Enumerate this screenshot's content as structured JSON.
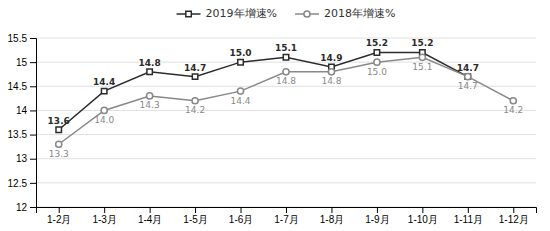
{
  "chart_data": {
    "type": "line",
    "categories": [
      "1-2月",
      "1-3月",
      "1-4月",
      "1-5月",
      "1-6月",
      "1-7月",
      "1-8月",
      "1-9月",
      "1-10月",
      "1-11月",
      "1-12月"
    ],
    "series": [
      {
        "name": "2019年增速%",
        "color": "#2b2b2b",
        "marker": "square",
        "values": [
          13.6,
          14.4,
          14.8,
          14.7,
          15.0,
          15.1,
          14.9,
          15.2,
          15.2,
          14.7,
          null
        ],
        "value_labels": [
          "13.6",
          "14.4",
          "14.8",
          "14.7",
          "15.0",
          "15.1",
          "14.9",
          "15.2",
          "15.2",
          "14.7",
          null
        ]
      },
      {
        "name": "2018年增速%",
        "color": "#888888",
        "marker": "circle",
        "values": [
          13.3,
          14.0,
          14.3,
          14.2,
          14.4,
          14.8,
          14.8,
          15.0,
          15.1,
          14.7,
          14.2
        ],
        "value_labels": [
          "13.3",
          "14.0",
          "14.3",
          "14.2",
          "14.4",
          "14.8",
          "14.8",
          "15.0",
          "15.1",
          "14.7",
          "14.2"
        ]
      }
    ],
    "ylim": [
      12,
      15.5
    ],
    "yticks": [
      12,
      12.5,
      13,
      13.5,
      14,
      14.5,
      15,
      15.5
    ],
    "grid": true,
    "legend": "top",
    "data_labels": true
  }
}
